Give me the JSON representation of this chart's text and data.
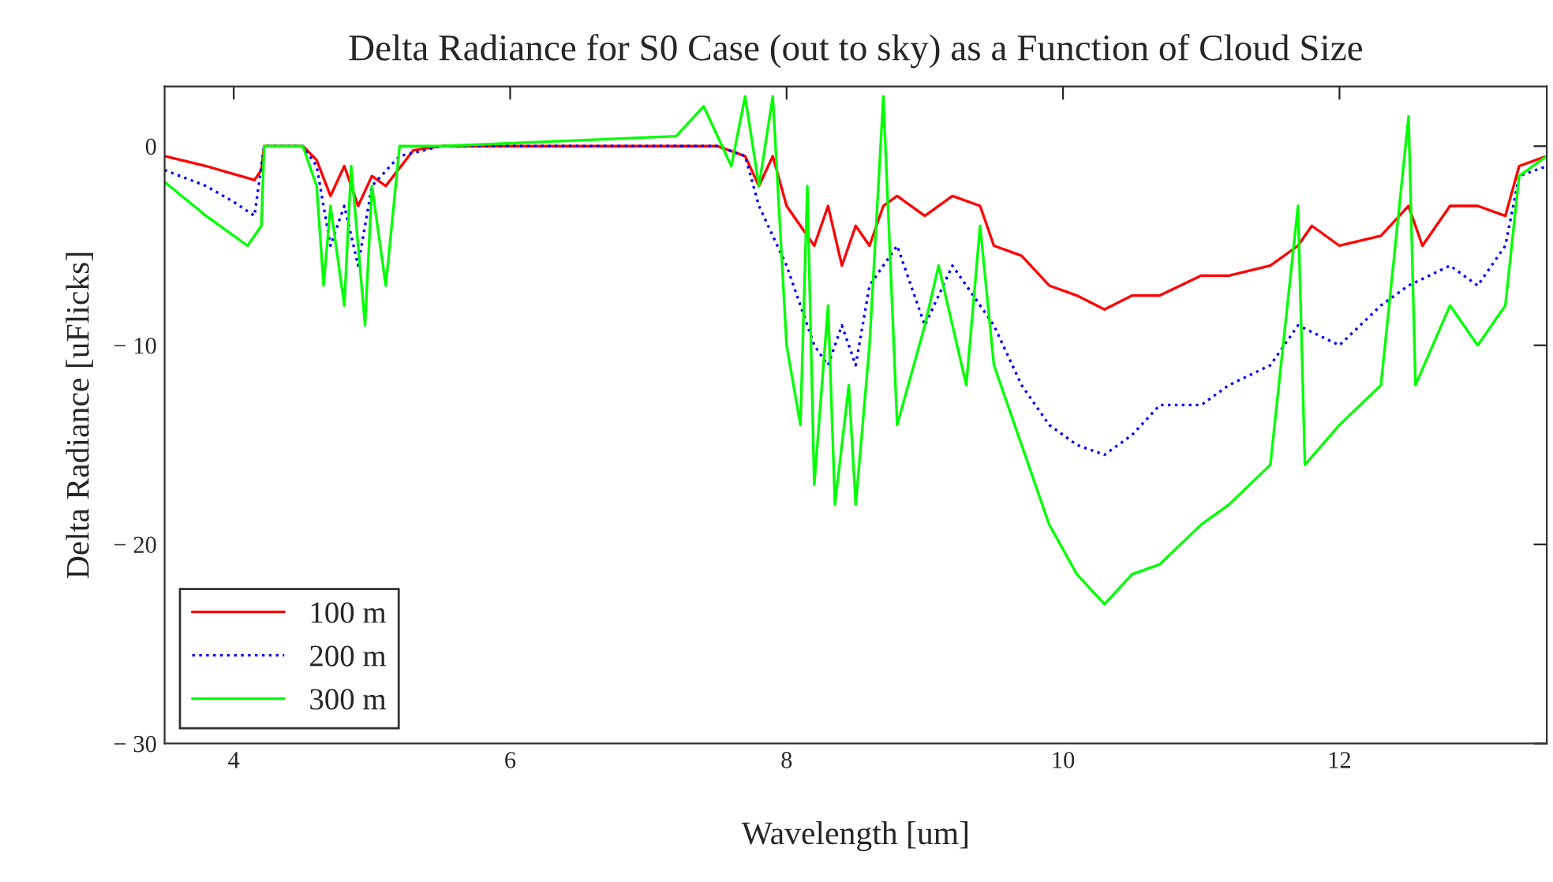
{
  "chart_data": {
    "type": "line",
    "title": "Delta Radiance for S0 Case (out to sky) as a Function of Cloud Size",
    "xlabel": "Wavelength [um]",
    "ylabel": "Delta Radiance [uFlicks]",
    "xlim": [
      3.5,
      13.5
    ],
    "xticks": [
      4,
      6,
      8,
      10,
      12
    ],
    "ylim": [
      -30,
      3
    ],
    "yticks": [
      {
        "value": -30,
        "label": "− 30"
      },
      {
        "value": -20,
        "label": "− 20"
      },
      {
        "value": -10,
        "label": "− 10"
      },
      0
    ],
    "legend": "bottom left",
    "grid": false,
    "series": [
      {
        "name": "100 m",
        "color": "#ff0000",
        "line_style": "solid",
        "x": [
          3.5,
          3.8,
          4.0,
          4.15,
          4.2,
          4.22,
          4.5,
          4.6,
          4.7,
          4.8,
          4.9,
          5.0,
          5.1,
          5.3,
          5.5,
          7.5,
          7.7,
          7.8,
          7.9,
          8.0,
          8.1,
          8.2,
          8.3,
          8.4,
          8.5,
          8.6,
          8.7,
          8.8,
          9.0,
          9.2,
          9.4,
          9.5,
          9.7,
          9.9,
          10.1,
          10.3,
          10.5,
          10.7,
          11.0,
          11.2,
          11.5,
          11.7,
          11.8,
          12.0,
          12.3,
          12.5,
          12.6,
          12.8,
          13.0,
          13.2,
          13.3,
          13.5
        ],
        "values": [
          -0.5,
          -1,
          -1.4,
          -1.7,
          -1.2,
          0,
          0,
          -0.7,
          -2.5,
          -1,
          -3,
          -1.5,
          -2,
          -0.2,
          0,
          0,
          -0.5,
          -2,
          -0.5,
          -3,
          -4,
          -5,
          -3,
          -6,
          -4,
          -5,
          -3,
          -2.5,
          -3.5,
          -2.5,
          -3,
          -5,
          -5.5,
          -7,
          -7.5,
          -8.2,
          -7.5,
          -7.5,
          -6.5,
          -6.5,
          -6,
          -5,
          -4,
          -5,
          -4.5,
          -3,
          -5,
          -3,
          -3,
          -3.5,
          -1,
          -0.5
        ]
      },
      {
        "name": "200 m",
        "color": "#0000ff",
        "line_style": "dotted",
        "x": [
          3.5,
          3.8,
          4.0,
          4.15,
          4.22,
          4.5,
          4.6,
          4.7,
          4.8,
          4.9,
          5.0,
          5.2,
          5.5,
          7.5,
          7.7,
          7.8,
          8.0,
          8.1,
          8.2,
          8.3,
          8.4,
          8.5,
          8.6,
          8.8,
          9.0,
          9.2,
          9.4,
          9.5,
          9.7,
          9.9,
          10.1,
          10.3,
          10.5,
          10.7,
          11.0,
          11.2,
          11.5,
          11.7,
          12.0,
          12.3,
          12.5,
          12.8,
          13.0,
          13.2,
          13.3,
          13.5
        ],
        "values": [
          -1.2,
          -2,
          -2.8,
          -3.5,
          0,
          0,
          -1,
          -5,
          -3,
          -6,
          -2,
          -0.5,
          0,
          0,
          -0.5,
          -3,
          -6,
          -8,
          -10,
          -11,
          -9,
          -11,
          -7,
          -5,
          -9,
          -6,
          -8,
          -9,
          -12,
          -14,
          -15,
          -15.5,
          -14.5,
          -13,
          -13,
          -12,
          -11,
          -9,
          -10,
          -8,
          -7,
          -6,
          -7,
          -5,
          -1.5,
          -1
        ]
      },
      {
        "name": "300 m",
        "color": "#00ff00",
        "line_style": "solid",
        "x": [
          3.5,
          3.8,
          4.0,
          4.1,
          4.2,
          4.22,
          4.5,
          4.6,
          4.65,
          4.7,
          4.8,
          4.85,
          4.95,
          5.0,
          5.1,
          5.2,
          5.5,
          7.2,
          7.4,
          7.6,
          7.7,
          7.8,
          7.9,
          8.0,
          8.1,
          8.15,
          8.2,
          8.3,
          8.35,
          8.45,
          8.5,
          8.6,
          8.7,
          8.8,
          9.0,
          9.1,
          9.3,
          9.4,
          9.5,
          9.7,
          9.9,
          10.1,
          10.3,
          10.5,
          10.7,
          11.0,
          11.2,
          11.5,
          11.7,
          11.75,
          12.0,
          12.3,
          12.5,
          12.55,
          12.8,
          13.0,
          13.2,
          13.3,
          13.5
        ],
        "values": [
          -1.8,
          -3.5,
          -4.5,
          -5,
          -4,
          0,
          0,
          -2,
          -7,
          -3,
          -8,
          -1,
          -9,
          -2,
          -7,
          0,
          0,
          0.5,
          2,
          -1,
          2.5,
          -2,
          2.5,
          -10,
          -14,
          -2,
          -17,
          -8,
          -18,
          -12,
          -18,
          -10,
          2.5,
          -14,
          -9,
          -6,
          -12,
          -4,
          -11,
          -15,
          -19,
          -21.5,
          -23,
          -21.5,
          -21,
          -19,
          -18,
          -16,
          -3,
          -16,
          -14,
          -12,
          1.5,
          -12,
          -8,
          -10,
          -8,
          -1.5,
          -0.5
        ]
      }
    ]
  }
}
